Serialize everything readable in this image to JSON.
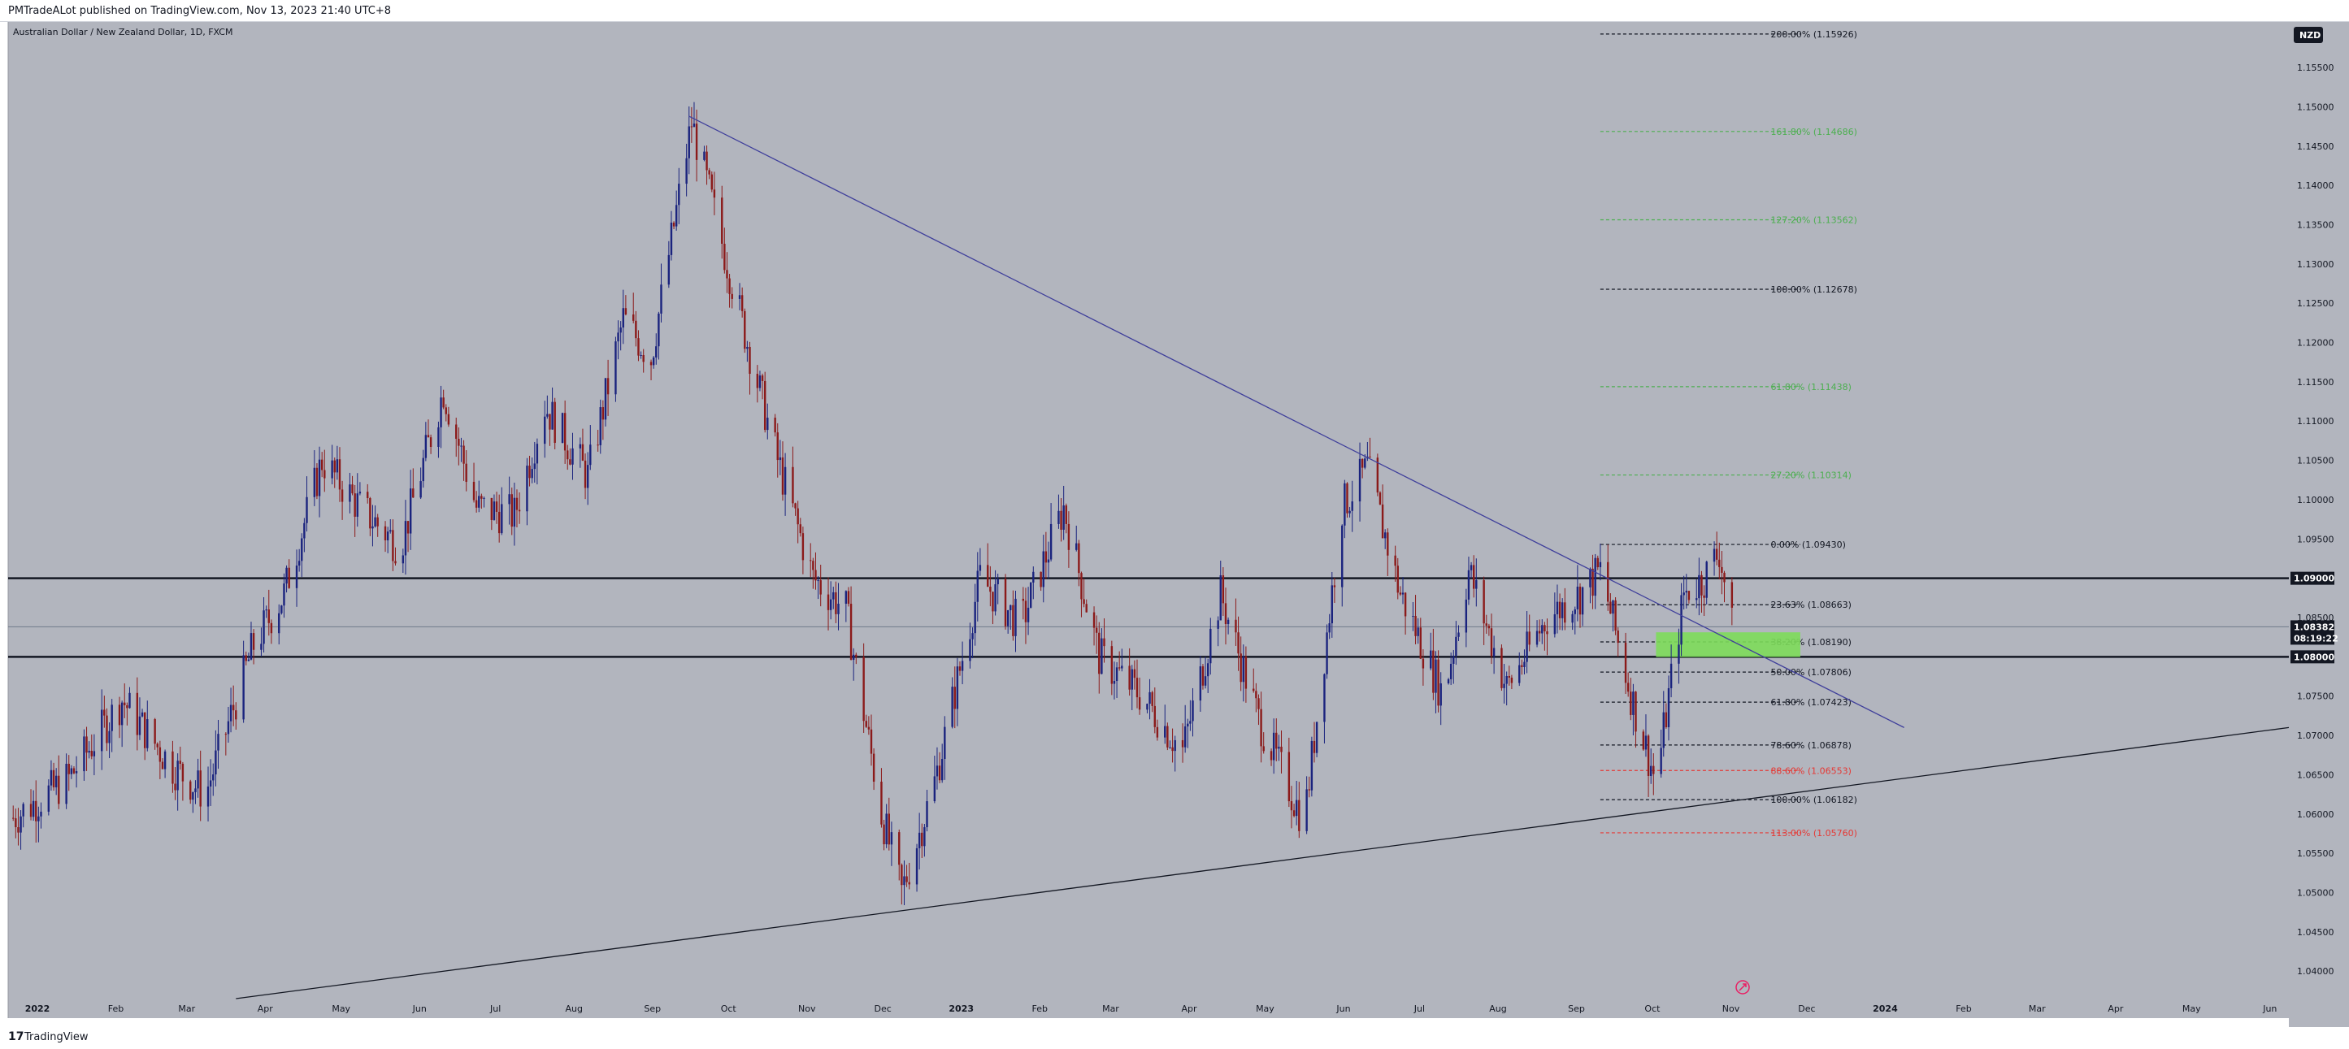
{
  "header": {
    "published": "PMTradeALot published on TradingView.com, Nov 13, 2023 21:40 UTC+8"
  },
  "footer": {
    "logo_glyph": "17",
    "brand": "TradingView"
  },
  "symbol": {
    "title": "Australian Dollar / New Zealand Dollar, 1D, FXCM",
    "currency": "NZD"
  },
  "price_axis": {
    "labels": [
      "1.15500",
      "1.15000",
      "1.14500",
      "1.14000",
      "1.13500",
      "1.13000",
      "1.12500",
      "1.12000",
      "1.11500",
      "1.11000",
      "1.10500",
      "1.10000",
      "1.09500",
      "1.08500",
      "1.07500",
      "1.07000",
      "1.06500",
      "1.06000",
      "1.05500",
      "1.05000",
      "1.04500",
      "1.04000"
    ],
    "values": [
      1.155,
      1.15,
      1.145,
      1.14,
      1.135,
      1.13,
      1.125,
      1.12,
      1.115,
      1.11,
      1.105,
      1.1,
      1.095,
      1.085,
      1.075,
      1.07,
      1.065,
      1.06,
      1.055,
      1.05,
      1.045,
      1.04
    ],
    "range": [
      1.0365,
      1.1608
    ]
  },
  "time_axis": {
    "labels": [
      "2022",
      "Feb",
      "Mar",
      "Apr",
      "May",
      "Jun",
      "Jul",
      "Aug",
      "Sep",
      "Oct",
      "Nov",
      "Dec",
      "2023",
      "Feb",
      "Mar",
      "Apr",
      "May",
      "Jun",
      "Jul",
      "Aug",
      "Sep",
      "Oct",
      "Nov",
      "Dec",
      "2024",
      "Feb",
      "Mar",
      "Apr",
      "May",
      "Jun"
    ],
    "bold": [
      "2022",
      "2023",
      "2024"
    ]
  },
  "horizontal_levels": [
    {
      "label": "1.09000",
      "value": 1.09
    },
    {
      "label": "1.08000",
      "value": 1.08
    }
  ],
  "current_price": {
    "label": "1.08382",
    "value": 1.08382,
    "countdown": "08:19:22"
  },
  "fib_levels": [
    {
      "label": "200.00% (1.15926)",
      "value": 1.15926,
      "color": "#131722"
    },
    {
      "label": "161.80% (1.14686)",
      "value": 1.14686,
      "color": "#4caf50"
    },
    {
      "label": "127.20% (1.13562)",
      "value": 1.13562,
      "color": "#4caf50"
    },
    {
      "label": "100.00% (1.12678)",
      "value": 1.12678,
      "color": "#131722"
    },
    {
      "label": "61.80% (1.11438)",
      "value": 1.11438,
      "color": "#4caf50"
    },
    {
      "label": "27.20% (1.10314)",
      "value": 1.10314,
      "color": "#4caf50"
    },
    {
      "label": "0.00% (1.09430)",
      "value": 1.0943,
      "color": "#131722"
    },
    {
      "label": "23.63% (1.08663)",
      "value": 1.08663,
      "color": "#131722"
    },
    {
      "label": "38.20% (1.08190)",
      "value": 1.0819,
      "color": "#131722"
    },
    {
      "label": "50.00% (1.07806)",
      "value": 1.07806,
      "color": "#131722"
    },
    {
      "label": "61.80% (1.07423)",
      "value": 1.07423,
      "color": "#131722"
    },
    {
      "label": "78.60% (1.06878)",
      "value": 1.06878,
      "color": "#131722"
    },
    {
      "label": "88.60% (1.06553)",
      "value": 1.06553,
      "color": "#e53935"
    },
    {
      "label": "100.00% (1.06182)",
      "value": 1.06182,
      "color": "#131722"
    },
    {
      "label": "113.00% (1.05760)",
      "value": 1.0576,
      "color": "#e53935"
    }
  ],
  "colors": {
    "chart_bg": "#b2b5be",
    "up_candle": "#1a237e",
    "down_candle": "#8b1a1a",
    "zone": "#7ddc5a",
    "trend_down": "#3f3f9b",
    "trend_up": "#131722",
    "tag_bg": "#131722"
  },
  "chart_data": {
    "type": "candlestick",
    "title": "Australian Dollar / New Zealand Dollar, 1D, FXCM",
    "ylabel": "NZD",
    "ylim": [
      1.0365,
      1.1608
    ],
    "x_range": [
      "2022-01-01",
      "2024-06-20"
    ],
    "swing_path": [
      [
        "2022-01-03",
        1.0595
      ],
      [
        "2022-01-25",
        1.0645
      ],
      [
        "2022-02-15",
        1.0745
      ],
      [
        "2022-03-07",
        1.066
      ],
      [
        "2022-03-20",
        1.0625
      ],
      [
        "2022-04-08",
        1.0815
      ],
      [
        "2022-04-20",
        1.088
      ],
      [
        "2022-05-05",
        1.105
      ],
      [
        "2022-05-20",
        1.099
      ],
      [
        "2022-06-05",
        1.094
      ],
      [
        "2022-06-22",
        1.114
      ],
      [
        "2022-07-05",
        1.099
      ],
      [
        "2022-07-20",
        1.098
      ],
      [
        "2022-08-01",
        1.112
      ],
      [
        "2022-08-18",
        1.103
      ],
      [
        "2022-09-01",
        1.123
      ],
      [
        "2022-09-12",
        1.118
      ],
      [
        "2022-09-28",
        1.148
      ],
      [
        "2022-10-20",
        1.12
      ],
      [
        "2022-11-01",
        1.105
      ],
      [
        "2022-11-15",
        1.09
      ],
      [
        "2022-11-28",
        1.086
      ],
      [
        "2022-12-12",
        1.06
      ],
      [
        "2022-12-20",
        1.05
      ],
      [
        "2023-01-02",
        1.064
      ],
      [
        "2023-01-20",
        1.09
      ],
      [
        "2023-02-05",
        1.084
      ],
      [
        "2023-02-22",
        1.099
      ],
      [
        "2023-03-08",
        1.08
      ],
      [
        "2023-03-25",
        1.075
      ],
      [
        "2023-04-10",
        1.068
      ],
      [
        "2023-04-25",
        1.088
      ],
      [
        "2023-05-10",
        1.072
      ],
      [
        "2023-05-28",
        1.059
      ],
      [
        "2023-06-12",
        1.099
      ],
      [
        "2023-06-22",
        1.104
      ],
      [
        "2023-07-05",
        1.088
      ],
      [
        "2023-07-22",
        1.075
      ],
      [
        "2023-08-01",
        1.091
      ],
      [
        "2023-08-16",
        1.076
      ],
      [
        "2023-09-01",
        1.085
      ],
      [
        "2023-09-14",
        1.088
      ],
      [
        "2023-09-22",
        1.091
      ],
      [
        "2023-10-05",
        1.074
      ],
      [
        "2023-10-14",
        1.064
      ],
      [
        "2023-10-25",
        1.088
      ],
      [
        "2023-11-02",
        1.09
      ],
      [
        "2023-11-08",
        1.0935
      ],
      [
        "2023-11-13",
        1.0838
      ]
    ],
    "trendlines": [
      {
        "from": [
          "2022-09-27",
          1.1488
        ],
        "to": [
          "2024-01-20",
          1.071
        ]
      },
      {
        "from": [
          "2022-04-01",
          1.0365
        ],
        "to": [
          "2024-06-20",
          1.071
        ]
      }
    ],
    "zone": {
      "from": "2023-10-14",
      "to": "2023-12-10",
      "low": 1.0806,
      "high": 1.0825
    }
  }
}
